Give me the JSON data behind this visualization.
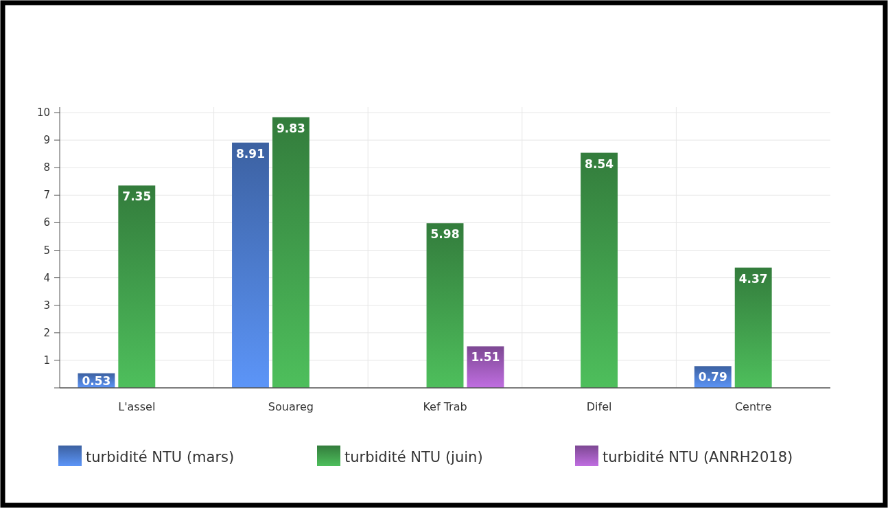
{
  "chart_data": {
    "type": "bar",
    "categories": [
      "L'assel",
      "Souareg",
      "Kef Trab",
      "Difel",
      "Centre"
    ],
    "series": [
      {
        "name": "turbidité NTU (mars)",
        "color": "#4a78c8",
        "values": [
          0.53,
          8.91,
          null,
          null,
          0.79
        ],
        "value_labels": [
          "0.53",
          "8.91",
          null,
          null,
          "0.79"
        ]
      },
      {
        "name": "turbidité NTU (juin)",
        "color": "#3f9a4a",
        "values": [
          7.35,
          9.83,
          5.98,
          8.54,
          4.37
        ],
        "value_labels": [
          "7.35",
          "9.83",
          "5.98",
          "8.54",
          "4.37"
        ]
      },
      {
        "name": "turbidité NTU (ANRH2018)",
        "color": "#9b59b6",
        "values": [
          null,
          null,
          1.51,
          null,
          null
        ],
        "value_labels": [
          null,
          null,
          "1.51",
          null,
          null
        ]
      }
    ],
    "ylim": [
      0,
      10
    ],
    "yticks": [
      {
        "value": 0,
        "label": null
      },
      1,
      2,
      3,
      4,
      5,
      6,
      7,
      8,
      9,
      10
    ],
    "grid": true,
    "legend": "bottom"
  }
}
